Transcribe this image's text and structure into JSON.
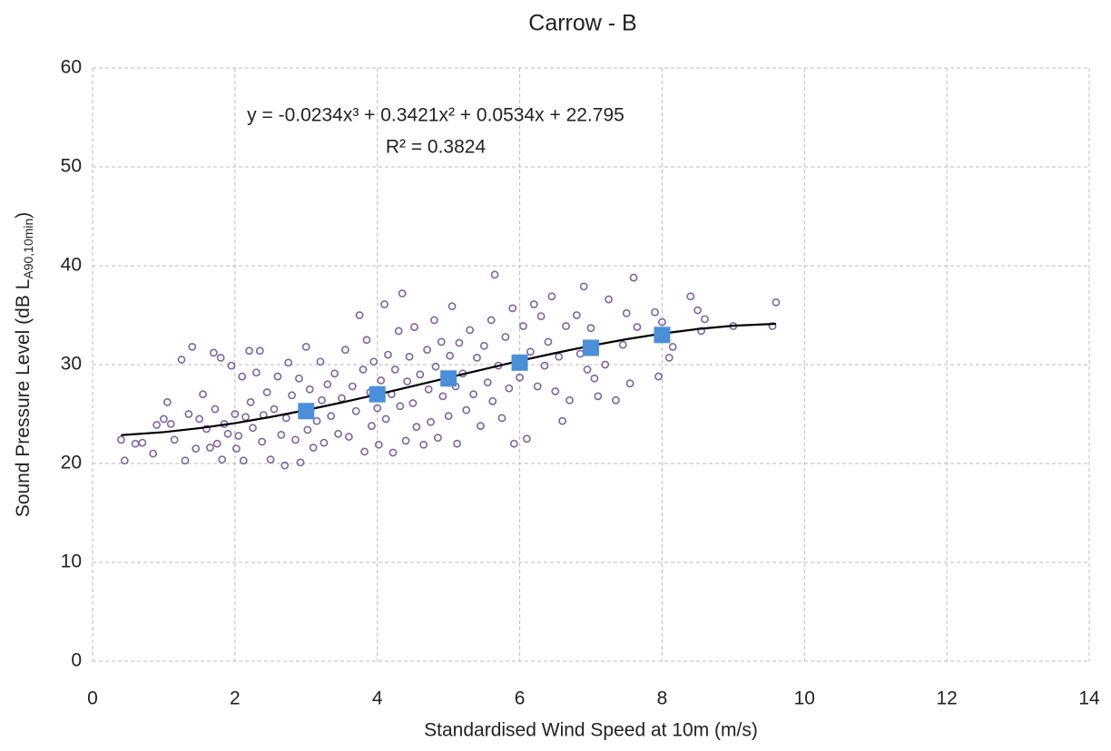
{
  "chart_data": {
    "type": "scatter",
    "title": "Carrow - B",
    "x_label": "Standardised Wind Speed at 10m (m/s)",
    "y_label": "Sound Pressure Level (dB L",
    "y_label_sub": "A90,10min",
    "y_label_end": ")",
    "equation": "y = -0.0234x³ + 0.3421x² + 0.0534x + 22.795",
    "r_squared": "R² = 0.3824",
    "xlim": [
      0,
      14
    ],
    "xticks": [
      0,
      2,
      4,
      6,
      8,
      10,
      12,
      14
    ],
    "ylim": [
      0,
      60
    ],
    "yticks": [
      0,
      10,
      20,
      30,
      40,
      50,
      60
    ],
    "grid": true,
    "scatter": {
      "color": "#8064a2",
      "x": [
        0.4,
        0.45,
        0.6,
        0.7,
        0.85,
        0.9,
        1.0,
        1.05,
        1.1,
        1.15,
        1.25,
        1.3,
        1.35,
        1.4,
        1.45,
        1.5,
        1.55,
        1.6,
        1.65,
        1.7,
        1.72,
        1.75,
        1.8,
        1.82,
        1.85,
        1.9,
        1.95,
        2.0,
        2.02,
        2.05,
        2.1,
        2.12,
        2.15,
        2.2,
        2.22,
        2.25,
        2.3,
        2.35,
        2.38,
        2.4,
        2.45,
        2.5,
        2.55,
        2.6,
        2.65,
        2.7,
        2.72,
        2.75,
        2.8,
        2.85,
        2.9,
        2.92,
        2.95,
        3.0,
        3.02,
        3.05,
        3.1,
        3.15,
        3.2,
        3.22,
        3.25,
        3.3,
        3.35,
        3.4,
        3.45,
        3.5,
        3.55,
        3.6,
        3.65,
        3.7,
        3.75,
        3.8,
        3.82,
        3.85,
        3.9,
        3.92,
        3.95,
        4.0,
        4.02,
        4.05,
        4.1,
        4.12,
        4.15,
        4.2,
        4.22,
        4.25,
        4.3,
        4.32,
        4.35,
        4.4,
        4.42,
        4.45,
        4.5,
        4.52,
        4.55,
        4.6,
        4.65,
        4.7,
        4.72,
        4.75,
        4.8,
        4.82,
        4.85,
        4.9,
        4.92,
        4.95,
        5.0,
        5.02,
        5.05,
        5.1,
        5.12,
        5.15,
        5.2,
        5.25,
        5.3,
        5.35,
        5.4,
        5.45,
        5.5,
        5.55,
        5.6,
        5.62,
        5.65,
        5.7,
        5.75,
        5.8,
        5.85,
        5.9,
        5.92,
        5.95,
        6.0,
        6.05,
        6.1,
        6.15,
        6.2,
        6.25,
        6.3,
        6.35,
        6.4,
        6.45,
        6.5,
        6.55,
        6.6,
        6.65,
        6.7,
        6.8,
        6.85,
        6.9,
        6.95,
        7.0,
        7.05,
        7.1,
        7.2,
        7.25,
        7.35,
        7.45,
        7.5,
        7.55,
        7.6,
        7.65,
        7.9,
        7.95,
        8.0,
        8.1,
        8.15,
        8.4,
        8.5,
        8.6,
        8.55,
        9.0,
        9.55,
        9.6
      ],
      "values": [
        22.4,
        20.3,
        22.0,
        22.1,
        21.0,
        23.9,
        24.5,
        26.2,
        24.0,
        22.4,
        30.5,
        20.3,
        25.0,
        31.8,
        21.5,
        24.5,
        27.0,
        23.5,
        21.6,
        31.2,
        25.5,
        22.0,
        30.7,
        20.4,
        24.0,
        23.0,
        29.9,
        25.0,
        21.5,
        22.8,
        28.8,
        20.3,
        24.7,
        31.4,
        26.2,
        23.6,
        29.2,
        31.4,
        22.2,
        24.9,
        27.2,
        20.4,
        25.5,
        28.8,
        22.9,
        19.8,
        24.6,
        30.2,
        26.9,
        22.4,
        28.6,
        20.1,
        25.7,
        31.8,
        23.4,
        27.5,
        21.6,
        24.3,
        30.3,
        26.4,
        22.1,
        28.0,
        24.8,
        29.1,
        23.0,
        26.6,
        31.5,
        22.7,
        27.8,
        25.3,
        35.0,
        29.5,
        21.2,
        32.5,
        27.2,
        23.8,
        30.3,
        25.6,
        21.9,
        28.4,
        36.1,
        24.5,
        31.0,
        27.0,
        21.1,
        29.5,
        33.4,
        25.8,
        37.2,
        22.3,
        28.3,
        30.8,
        26.1,
        33.8,
        23.7,
        29.0,
        21.9,
        31.5,
        27.5,
        24.2,
        34.5,
        29.8,
        22.6,
        32.3,
        26.8,
        28.9,
        24.8,
        30.9,
        35.9,
        27.8,
        22.0,
        32.2,
        29.1,
        25.4,
        33.5,
        27.0,
        30.7,
        23.8,
        31.9,
        28.2,
        34.5,
        26.3,
        39.1,
        29.9,
        24.6,
        32.8,
        27.6,
        35.7,
        22.0,
        30.4,
        28.7,
        33.9,
        22.5,
        31.3,
        36.1,
        27.8,
        34.9,
        29.9,
        32.3,
        36.9,
        27.3,
        30.8,
        24.3,
        33.9,
        26.4,
        35.0,
        31.1,
        37.9,
        29.5,
        33.7,
        28.6,
        26.8,
        30.0,
        36.6,
        26.4,
        32.0,
        35.2,
        28.1,
        38.8,
        33.8,
        35.3,
        28.8,
        34.3,
        30.7,
        31.8,
        36.9,
        35.5,
        34.6,
        33.4,
        33.9,
        33.9,
        36.3
      ]
    },
    "means": {
      "color": "#4a8fd8",
      "x": [
        3,
        4,
        5,
        6,
        7,
        8
      ],
      "values": [
        25.3,
        27.0,
        28.6,
        30.2,
        31.7,
        33.0
      ]
    },
    "trendline": {
      "color": "#000000",
      "x": [
        0.4,
        1,
        1.5,
        2,
        2.5,
        3,
        3.5,
        4,
        4.5,
        5,
        5.5,
        6,
        6.5,
        7,
        7.5,
        8,
        8.5,
        9,
        9.6
      ],
      "values": [
        22.87,
        23.17,
        23.57,
        24.08,
        24.7,
        25.4,
        26.17,
        26.98,
        27.83,
        28.69,
        29.54,
        30.38,
        31.17,
        31.91,
        32.57,
        33.14,
        33.6,
        33.93,
        34.13
      ]
    }
  }
}
